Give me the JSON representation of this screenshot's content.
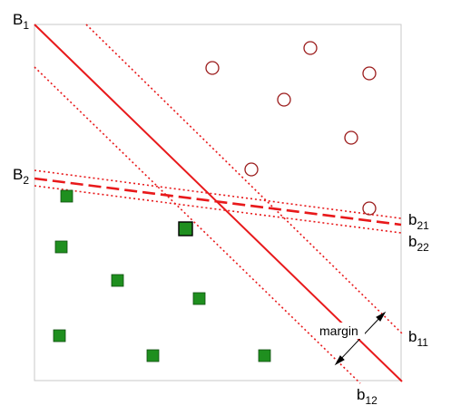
{
  "labels": {
    "b1": {
      "main": "B",
      "sub": "1"
    },
    "b2": {
      "main": "B",
      "sub": "2"
    },
    "b21": {
      "main": "b",
      "sub": "21"
    },
    "b22": {
      "main": "b",
      "sub": "22"
    },
    "b11": {
      "main": "b",
      "sub": "11"
    },
    "b12": {
      "main": "b",
      "sub": "12"
    },
    "margin": "margin"
  },
  "colors": {
    "boundary": "#e8191b",
    "circle": "#9b1b1b",
    "square_fill": "#1f8f1f",
    "square_stroke": "#0d4d0d",
    "frame": "#c8c8c8"
  }
}
